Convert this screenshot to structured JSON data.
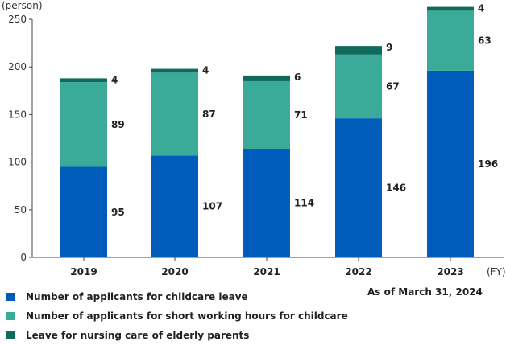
{
  "chart_data": {
    "type": "bar",
    "stacked": true,
    "categories": [
      "2019",
      "2020",
      "2021",
      "2022",
      "2023"
    ],
    "series": [
      {
        "name": "Number of applicants for childcare leave",
        "values": [
          95,
          107,
          114,
          146,
          196
        ],
        "color": "#005bbb"
      },
      {
        "name": "Number of applicants for short working hours for childcare",
        "values": [
          89,
          87,
          71,
          67,
          63
        ],
        "color": "#3aab98"
      },
      {
        "name": "Leave for nursing care of elderly parents",
        "values": [
          4,
          4,
          6,
          9,
          4
        ],
        "color": "#0e6b5c"
      }
    ],
    "ylabel": "(person)",
    "xlabel": "(FY)",
    "ylim": [
      0,
      250
    ],
    "yticks": [
      0,
      50,
      100,
      150,
      200,
      250
    ],
    "grid": false,
    "legend_position": "bottom-left",
    "note": "As of March 31, 2024"
  }
}
